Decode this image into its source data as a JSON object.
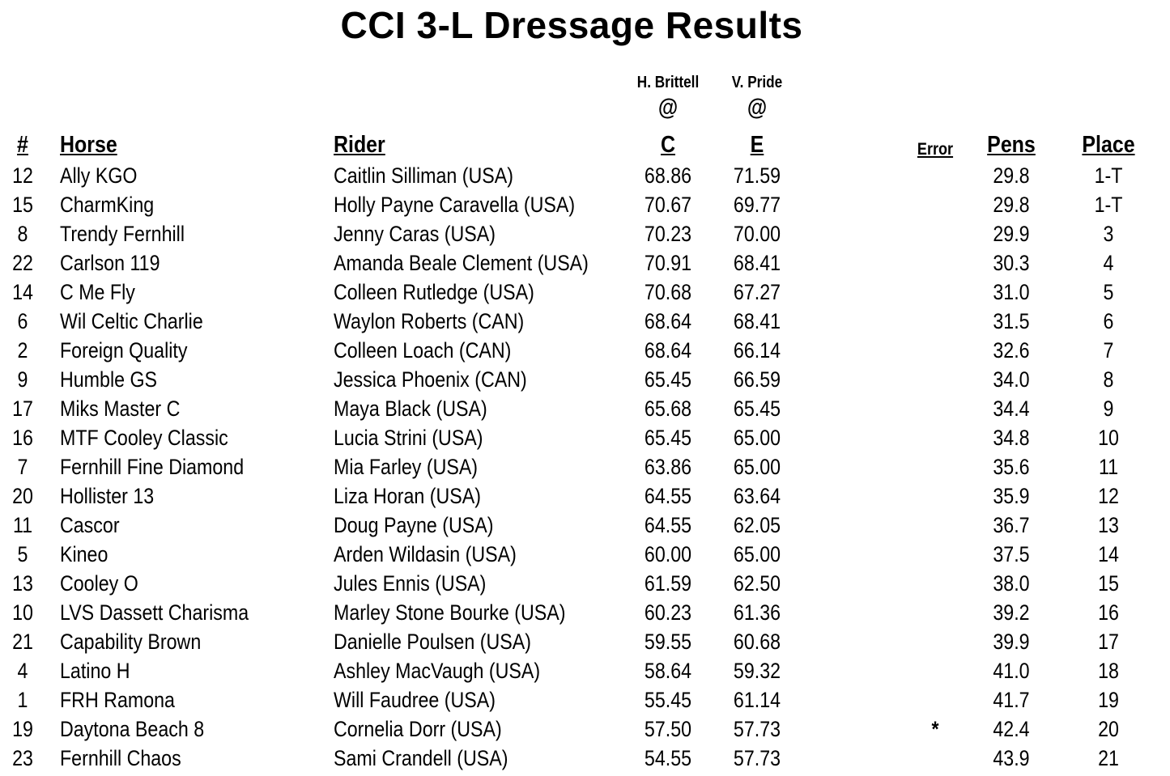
{
  "title": "CCI 3-L Dressage Results",
  "judges": [
    {
      "name": "H. Brittell",
      "at": "@",
      "letter": "C"
    },
    {
      "name": "V. Pride",
      "at": "@",
      "letter": "E"
    }
  ],
  "headers": {
    "num": "#",
    "horse": "Horse",
    "rider": "Rider",
    "error": "Error",
    "pens": "Pens",
    "place": "Place"
  },
  "rows": [
    {
      "num": "12",
      "horse": "Ally KGO",
      "rider": "Caitlin Silliman (USA)",
      "s1": "68.86",
      "s2": "71.59",
      "error": "",
      "pens": "29.8",
      "place": "1-T"
    },
    {
      "num": "15",
      "horse": "CharmKing",
      "rider": "Holly Payne Caravella (USA)",
      "s1": "70.67",
      "s2": "69.77",
      "error": "",
      "pens": "29.8",
      "place": "1-T"
    },
    {
      "num": "8",
      "horse": "Trendy Fernhill",
      "rider": "Jenny Caras (USA)",
      "s1": "70.23",
      "s2": "70.00",
      "error": "",
      "pens": "29.9",
      "place": "3"
    },
    {
      "num": "22",
      "horse": "Carlson 119",
      "rider": "Amanda Beale Clement (USA)",
      "s1": "70.91",
      "s2": "68.41",
      "error": "",
      "pens": "30.3",
      "place": "4"
    },
    {
      "num": "14",
      "horse": "C Me Fly",
      "rider": "Colleen Rutledge (USA)",
      "s1": "70.68",
      "s2": "67.27",
      "error": "",
      "pens": "31.0",
      "place": "5"
    },
    {
      "num": "6",
      "horse": "Wil Celtic Charlie",
      "rider": "Waylon Roberts (CAN)",
      "s1": "68.64",
      "s2": "68.41",
      "error": "",
      "pens": "31.5",
      "place": "6"
    },
    {
      "num": "2",
      "horse": "Foreign Quality",
      "rider": "Colleen Loach (CAN)",
      "s1": "68.64",
      "s2": "66.14",
      "error": "",
      "pens": "32.6",
      "place": "7"
    },
    {
      "num": "9",
      "horse": "Humble GS",
      "rider": "Jessica  Phoenix (CAN)",
      "s1": "65.45",
      "s2": "66.59",
      "error": "",
      "pens": "34.0",
      "place": "8"
    },
    {
      "num": "17",
      "horse": "Miks Master C",
      "rider": "Maya Black (USA)",
      "s1": "65.68",
      "s2": "65.45",
      "error": "",
      "pens": "34.4",
      "place": "9"
    },
    {
      "num": "16",
      "horse": "MTF Cooley Classic",
      "rider": "Lucia Strini (USA)",
      "s1": "65.45",
      "s2": "65.00",
      "error": "",
      "pens": "34.8",
      "place": "10"
    },
    {
      "num": "7",
      "horse": "Fernhill Fine Diamond",
      "rider": "Mia Farley (USA)",
      "s1": "63.86",
      "s2": "65.00",
      "error": "",
      "pens": "35.6",
      "place": "11"
    },
    {
      "num": "20",
      "horse": "Hollister 13",
      "rider": "Liza  Horan (USA)",
      "s1": "64.55",
      "s2": "63.64",
      "error": "",
      "pens": "35.9",
      "place": "12"
    },
    {
      "num": "11",
      "horse": "Cascor",
      "rider": "Doug Payne (USA)",
      "s1": "64.55",
      "s2": "62.05",
      "error": "",
      "pens": "36.7",
      "place": "13"
    },
    {
      "num": "5",
      "horse": "Kineo",
      "rider": "Arden Wildasin (USA)",
      "s1": "60.00",
      "s2": "65.00",
      "error": "",
      "pens": "37.5",
      "place": "14"
    },
    {
      "num": "13",
      "horse": "Cooley O",
      "rider": "Jules Ennis (USA)",
      "s1": "61.59",
      "s2": "62.50",
      "error": "",
      "pens": "38.0",
      "place": "15"
    },
    {
      "num": "10",
      "horse": "LVS Dassett Charisma",
      "rider": "Marley Stone Bourke (USA)",
      "s1": "60.23",
      "s2": "61.36",
      "error": "",
      "pens": "39.2",
      "place": "16"
    },
    {
      "num": "21",
      "horse": "Capability Brown",
      "rider": "Danielle Poulsen (USA)",
      "s1": "59.55",
      "s2": "60.68",
      "error": "",
      "pens": "39.9",
      "place": "17"
    },
    {
      "num": "4",
      "horse": "Latino H",
      "rider": "Ashley MacVaugh (USA)",
      "s1": "58.64",
      "s2": "59.32",
      "error": "",
      "pens": "41.0",
      "place": "18"
    },
    {
      "num": "1",
      "horse": "FRH Ramona",
      "rider": "Will Faudree (USA)",
      "s1": "55.45",
      "s2": "61.14",
      "error": "",
      "pens": "41.7",
      "place": "19"
    },
    {
      "num": "19",
      "horse": "Daytona Beach 8",
      "rider": "Cornelia Dorr (USA)",
      "s1": "57.50",
      "s2": "57.73",
      "error": "*",
      "pens": "42.4",
      "place": "20"
    },
    {
      "num": "23",
      "horse": "Fernhill Chaos",
      "rider": "Sami Crandell (USA)",
      "s1": "54.55",
      "s2": "57.73",
      "error": "",
      "pens": "43.9",
      "place": "21"
    }
  ]
}
